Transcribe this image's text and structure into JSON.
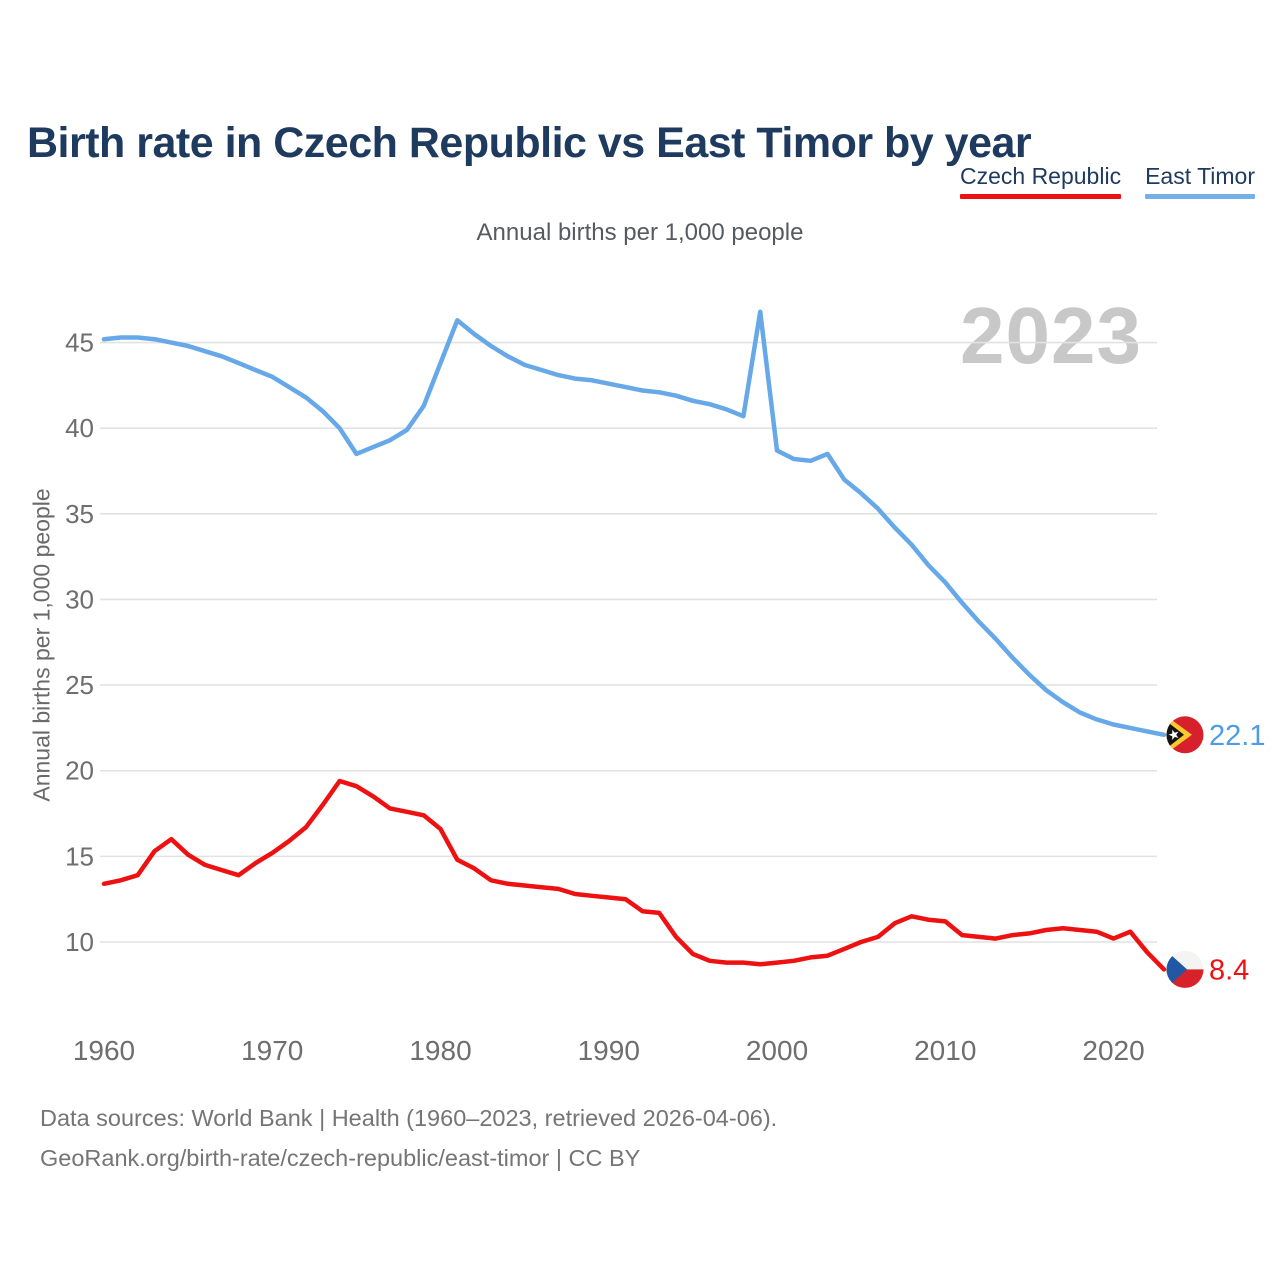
{
  "header": {
    "title": "Birth rate in Czech Republic vs East Timor by year"
  },
  "legend": [
    {
      "label": "Czech Republic",
      "color": "#ee1111"
    },
    {
      "label": "East Timor",
      "color": "#74b1e9"
    }
  ],
  "subtitle": "Annual births per 1,000 people",
  "watermark": "2023",
  "y_axis": {
    "title": "Annual births per 1,000 people",
    "ticks": [
      45,
      40,
      35,
      30,
      25,
      20,
      15,
      10
    ]
  },
  "x_axis": {
    "ticks": [
      1960,
      1970,
      1980,
      1990,
      2000,
      2010,
      2020
    ]
  },
  "end_labels": {
    "east_timor": "22.1",
    "czech_republic": "8.4"
  },
  "icons": {
    "czech_republic": "czech-flag-icon",
    "east_timor": "east-timor-flag-icon"
  },
  "footer": {
    "line1": "Data sources: World Bank | Health (1960–2023, retrieved 2026-04-06).",
    "line2": "GeoRank.org/birth-rate/czech-republic/east-timor | CC BY"
  },
  "colors": {
    "czech_line": "#ee1111",
    "east_timor_line": "#66a8e8",
    "east_timor_label": "#4d9de2",
    "title_navy": "#1e3a5e",
    "gridline": "#e2e2e2",
    "tick_text": "#6e6e6e",
    "watermark": "#c8c8c8",
    "footer_text": "#757575"
  },
  "chart_data": {
    "type": "line",
    "title": "Birth rate in Czech Republic vs East Timor by year",
    "subtitle": "Annual births per 1,000 people",
    "xlabel": "",
    "ylabel": "Annual births per 1,000 people",
    "x": {
      "start": 1960,
      "end": 2023,
      "step": 1
    },
    "ylim": [
      7,
      48
    ],
    "grid": true,
    "legend_position": "top-right",
    "series": [
      {
        "name": "Czech Republic",
        "key": "czech_republic",
        "color": "#ee1111",
        "values": [
          13.4,
          13.6,
          13.9,
          15.3,
          16.0,
          15.1,
          14.5,
          14.2,
          13.9,
          14.6,
          15.2,
          15.9,
          16.7,
          18.0,
          19.4,
          19.1,
          18.5,
          17.8,
          17.6,
          17.4,
          16.6,
          14.8,
          14.3,
          13.6,
          13.4,
          13.3,
          13.2,
          13.1,
          12.8,
          12.7,
          12.6,
          12.5,
          11.8,
          11.7,
          10.3,
          9.3,
          8.9,
          8.8,
          8.8,
          8.7,
          8.8,
          8.9,
          9.1,
          9.2,
          9.6,
          10.0,
          10.3,
          11.1,
          11.5,
          11.3,
          11.2,
          10.4,
          10.3,
          10.2,
          10.4,
          10.5,
          10.7,
          10.8,
          10.7,
          10.6,
          10.2,
          10.6,
          9.4,
          8.4
        ]
      },
      {
        "name": "East Timor",
        "key": "east_timor",
        "color": "#66a8e8",
        "values": [
          45.2,
          45.3,
          45.3,
          45.2,
          45.0,
          44.8,
          44.5,
          44.2,
          43.8,
          43.4,
          43.0,
          42.4,
          41.8,
          41.0,
          40.0,
          38.5,
          38.9,
          39.3,
          39.9,
          41.3,
          43.8,
          46.3,
          45.5,
          44.8,
          44.2,
          43.7,
          43.4,
          43.1,
          42.9,
          42.8,
          42.6,
          42.4,
          42.2,
          42.1,
          41.9,
          41.6,
          41.4,
          41.1,
          40.7,
          46.8,
          38.7,
          38.2,
          38.1,
          38.5,
          37.0,
          36.2,
          35.3,
          34.2,
          33.2,
          32.0,
          31.0,
          29.8,
          28.7,
          27.7,
          26.6,
          25.6,
          24.7,
          24.0,
          23.4,
          23.0,
          22.7,
          22.5,
          22.3,
          22.1
        ]
      }
    ]
  }
}
